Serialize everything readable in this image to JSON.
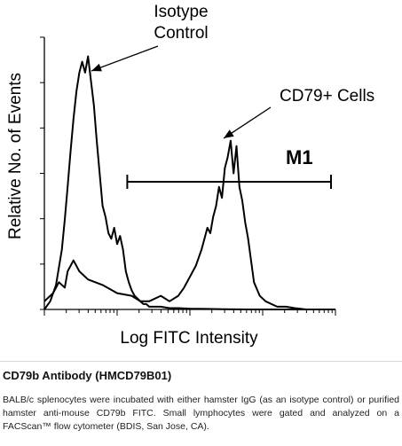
{
  "chart_data": {
    "type": "line",
    "xlabel": "Log FITC Intensity",
    "ylabel": "Relative No. of Events",
    "xlim": [
      0,
      100
    ],
    "ylim": [
      0,
      100
    ],
    "log_x": true,
    "series": [
      {
        "name": "Isotope Control",
        "x": [
          0,
          2,
          4,
          6,
          7,
          8,
          9,
          10,
          11,
          12,
          13,
          14,
          15,
          16,
          17,
          18,
          19,
          20,
          21,
          22,
          23,
          24,
          25,
          26,
          27,
          28,
          29,
          30,
          31,
          32,
          33,
          34,
          35,
          36,
          38,
          40,
          43,
          46,
          50,
          56,
          62,
          70,
          80,
          90,
          100
        ],
        "y": [
          0,
          3,
          9,
          22,
          33,
          45,
          58,
          70,
          80,
          87,
          91,
          87,
          93,
          84,
          75,
          62,
          50,
          38,
          34,
          28,
          26,
          30,
          24,
          27,
          22,
          14,
          10,
          7,
          5,
          4,
          3,
          2,
          2,
          1,
          1,
          1,
          0.5,
          0.5,
          0.3,
          0.2,
          0.1,
          0,
          0,
          0,
          0
        ]
      },
      {
        "name": "CD79+ Cells",
        "x": [
          0,
          3,
          5,
          7,
          8,
          10,
          12,
          15,
          20,
          25,
          30,
          33,
          36,
          40,
          43,
          46,
          48,
          50,
          52,
          54,
          55,
          56,
          57,
          58,
          59,
          60,
          61,
          62,
          63,
          64,
          65,
          66,
          67,
          68,
          69,
          70,
          71,
          72,
          74,
          76,
          78,
          80,
          83,
          86,
          90,
          95,
          100
        ],
        "y": [
          3,
          6,
          10,
          8,
          14,
          18,
          14,
          11,
          9,
          6,
          5,
          3,
          3,
          5,
          3,
          5,
          8,
          12,
          16,
          22,
          26,
          30,
          28,
          34,
          38,
          45,
          41,
          52,
          56,
          62,
          50,
          60,
          45,
          40,
          32,
          26,
          18,
          10,
          5,
          3,
          2,
          1,
          1,
          0.5,
          0,
          0,
          0
        ]
      }
    ],
    "annotations": [
      {
        "text": "Isotype Control",
        "lines": [
          "Isotype",
          "Control"
        ]
      },
      {
        "text": "CD79+ Cells"
      },
      {
        "text": "M1"
      }
    ],
    "gate": {
      "label": "M1",
      "x_start": 30,
      "x_end": 100
    },
    "colors": {
      "line": "#000000",
      "background": "#ffffff"
    }
  },
  "caption": {
    "title": "CD79b Antibody (HMCD79B01)",
    "text": "BALB/c splenocytes were incubated with either hamster IgG (as an isotype control) or purified hamster anti-mouse CD79b FITC. Small lymphocytes were gated and analyzed on a FACScan™ flow cytometer (BDIS, San Jose, CA)."
  }
}
